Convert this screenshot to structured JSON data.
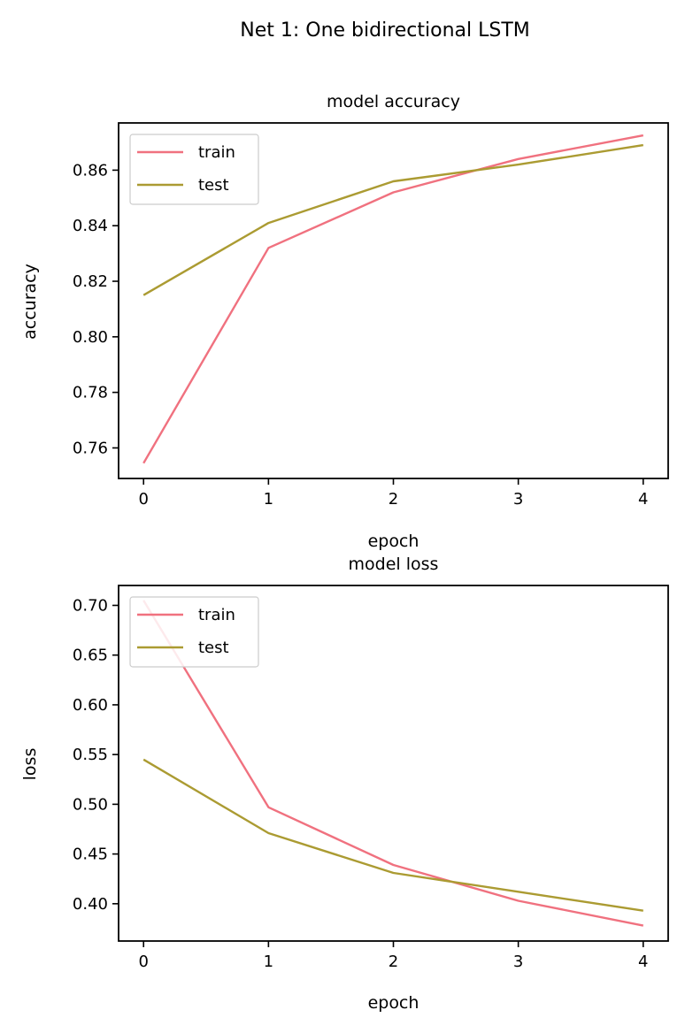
{
  "figure": {
    "suptitle": "Net 1: One bidirectional LSTM"
  },
  "colors": {
    "train": "#f0717f",
    "test": "#ab9b32"
  },
  "chart_data": [
    {
      "type": "line",
      "title": "model accuracy",
      "xlabel": "epoch",
      "ylabel": "accuracy",
      "x": [
        0,
        1,
        2,
        3,
        4
      ],
      "xticks": [
        "0",
        "1",
        "2",
        "3",
        "4"
      ],
      "yticks": [
        "0.76",
        "0.78",
        "0.80",
        "0.82",
        "0.84",
        "0.86"
      ],
      "xlim": [
        -0.2,
        4.2
      ],
      "ylim": [
        0.749,
        0.877
      ],
      "legend": "upper-left",
      "series": [
        {
          "name": "train",
          "values": [
            0.7545,
            0.832,
            0.852,
            0.864,
            0.8725
          ]
        },
        {
          "name": "test",
          "values": [
            0.815,
            0.841,
            0.856,
            0.862,
            0.869
          ]
        }
      ]
    },
    {
      "type": "line",
      "title": "model loss",
      "xlabel": "epoch",
      "ylabel": "loss",
      "x": [
        0,
        1,
        2,
        3,
        4
      ],
      "xticks": [
        "0",
        "1",
        "2",
        "3",
        "4"
      ],
      "yticks": [
        "0.40",
        "0.45",
        "0.50",
        "0.55",
        "0.60",
        "0.65",
        "0.70"
      ],
      "xlim": [
        -0.2,
        4.2
      ],
      "ylim": [
        0.3625,
        0.72
      ],
      "legend": "upper-left",
      "series": [
        {
          "name": "train",
          "values": [
            0.705,
            0.497,
            0.439,
            0.403,
            0.378
          ]
        },
        {
          "name": "test",
          "values": [
            0.545,
            0.471,
            0.431,
            0.412,
            0.393
          ]
        }
      ]
    }
  ]
}
